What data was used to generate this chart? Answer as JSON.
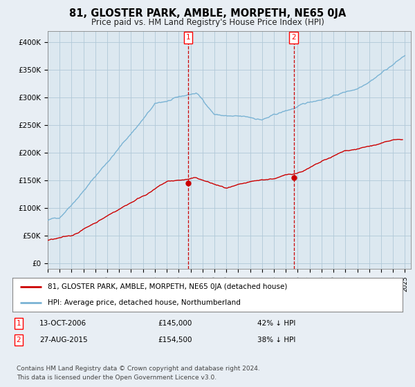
{
  "title": "81, GLOSTER PARK, AMBLE, MORPETH, NE65 0JA",
  "subtitle": "Price paid vs. HM Land Registry's House Price Index (HPI)",
  "ylabel_ticks": [
    "£0",
    "£50K",
    "£100K",
    "£150K",
    "£200K",
    "£250K",
    "£300K",
    "£350K",
    "£400K"
  ],
  "ytick_values": [
    0,
    50000,
    100000,
    150000,
    200000,
    250000,
    300000,
    350000,
    400000
  ],
  "ylim": [
    0,
    420000
  ],
  "xlim_start": 1995.0,
  "xlim_end": 2025.5,
  "sale1_x": 2006.79,
  "sale1_y": 145000,
  "sale2_x": 2015.66,
  "sale2_y": 154500,
  "sale1_date": "13-OCT-2006",
  "sale1_price": "£145,000",
  "sale1_hpi": "42% ↓ HPI",
  "sale2_date": "27-AUG-2015",
  "sale2_price": "£154,500",
  "sale2_hpi": "38% ↓ HPI",
  "red_line_color": "#cc0000",
  "blue_line_color": "#7ab3d4",
  "background_color": "#e8eef4",
  "plot_bg_color": "#dce8f0",
  "grid_color": "#b0c8d8",
  "legend_line1": "81, GLOSTER PARK, AMBLE, MORPETH, NE65 0JA (detached house)",
  "legend_line2": "HPI: Average price, detached house, Northumberland",
  "footer": "Contains HM Land Registry data © Crown copyright and database right 2024.\nThis data is licensed under the Open Government Licence v3.0."
}
